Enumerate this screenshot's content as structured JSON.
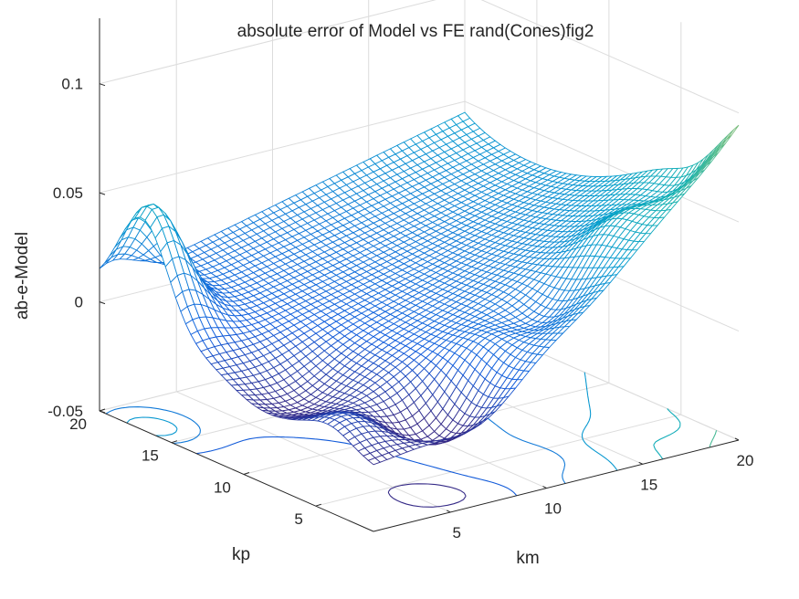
{
  "chart_data": {
    "type": "surface-mesh-with-contour",
    "title": "absolute error of Model vs FE rand(Cones)fig2",
    "xlabel": "km",
    "ylabel": "kp",
    "zlabel": "ab-e-Model",
    "xlim": [
      1,
      20
    ],
    "ylim": [
      1,
      20
    ],
    "zlim": [
      -0.05,
      0.13
    ],
    "x_ticks": [
      "5",
      "10",
      "15",
      "20"
    ],
    "y_ticks": [
      "5",
      "10",
      "15",
      "20"
    ],
    "z_ticks": [
      "-0.05",
      "0",
      "0.05",
      "0.1"
    ],
    "grid": true,
    "colormap": "parula",
    "color_range": [
      -0.02,
      0.12
    ],
    "surface_samples": [
      {
        "km": 1,
        "kp": 1,
        "z": -0.02
      },
      {
        "km": 1,
        "kp": 20,
        "z": 0.0
      },
      {
        "km": 1,
        "kp": 17,
        "z": 0.04
      },
      {
        "km": 20,
        "kp": 20,
        "z": 0.035
      },
      {
        "km": 20,
        "kp": 1,
        "z": 0.12
      },
      {
        "km": 7,
        "kp": 3,
        "z": -0.03
      },
      {
        "km": 5,
        "kp": 5,
        "z": -0.025
      }
    ],
    "contour_levels": [
      -0.02,
      0.0,
      0.02,
      0.04,
      0.06,
      0.08,
      0.1
    ]
  }
}
